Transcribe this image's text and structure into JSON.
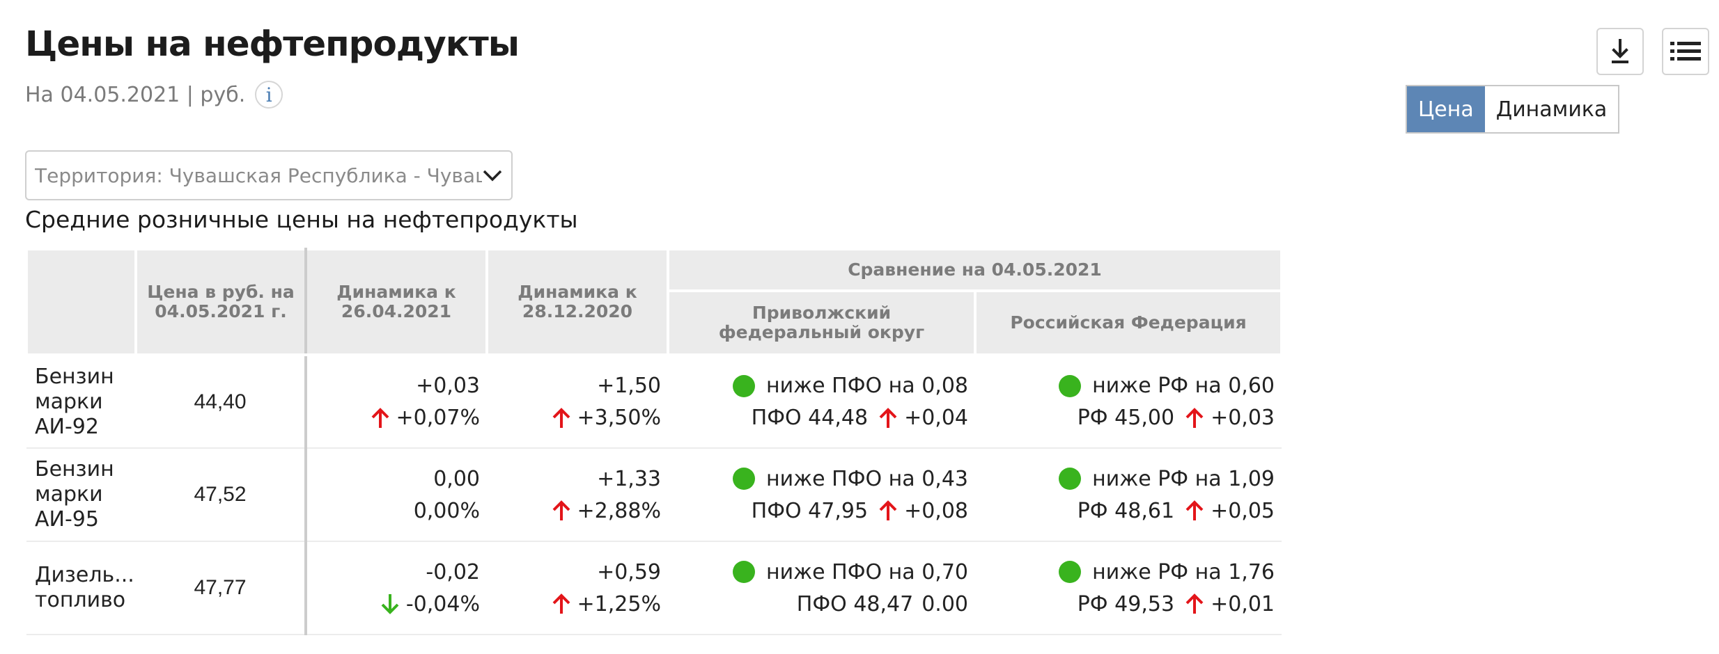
{
  "header": {
    "title": "Цены на нефтепродукты",
    "subtitle": "На 04.05.2021 | руб.",
    "info_icon_glyph": "i"
  },
  "toolbar": {
    "download_icon": "download-icon",
    "menu_icon": "list-menu-icon"
  },
  "view_toggle": {
    "options": [
      {
        "label": "Цена",
        "active": true
      },
      {
        "label": "Динамика",
        "active": false
      }
    ]
  },
  "territory": {
    "value": "Территория: Чувашская Республика - Чуваши"
  },
  "section_title": "Средние розничные цены на нефтепродукты",
  "table": {
    "headers": {
      "price": "Цена в руб. на 04.05.2021 г.",
      "dyn_week": "Динамика к 26.04.2021",
      "dyn_year": "Динамика к 28.12.2020",
      "compare_group": "Сравнение на 04.05.2021",
      "compare_district": "Приволжский федеральный округ",
      "compare_country": "Российская Федерация"
    },
    "rows": [
      {
        "name": "Бензин марки АИ-92",
        "price": "44,40",
        "dyn1_abs": "+0,03",
        "dyn1_pct": "+0,07%",
        "dyn1_dir": "up",
        "dyn2_abs": "+1,50",
        "dyn2_pct": "+3,50%",
        "dyn2_dir": "up",
        "pfo_cmp": "ниже ПФО на 0,08",
        "pfo_price": "ПФО 44,48",
        "pfo_delta": "+0,04",
        "pfo_dir": "up",
        "rf_cmp": "ниже РФ на 0,60",
        "rf_price": "РФ 45,00",
        "rf_delta": "+0,03",
        "rf_dir": "up"
      },
      {
        "name": "Бензин марки АИ-95",
        "price": "47,52",
        "dyn1_abs": "0,00",
        "dyn1_pct": "0,00%",
        "dyn1_dir": "none",
        "dyn2_abs": "+1,33",
        "dyn2_pct": "+2,88%",
        "dyn2_dir": "up",
        "pfo_cmp": "ниже ПФО на 0,43",
        "pfo_price": "ПФО 47,95",
        "pfo_delta": "+0,08",
        "pfo_dir": "up",
        "rf_cmp": "ниже РФ на 1,09",
        "rf_price": "РФ 48,61",
        "rf_delta": "+0,05",
        "rf_dir": "up"
      },
      {
        "name": "Дизель... топливо",
        "price": "47,77",
        "dyn1_abs": "-0,02",
        "dyn1_pct": "-0,04%",
        "dyn1_dir": "down",
        "dyn2_abs": "+0,59",
        "dyn2_pct": "+1,25%",
        "dyn2_dir": "up",
        "pfo_cmp": "ниже ПФО на 0,70",
        "pfo_price": "ПФО 48,47",
        "pfo_delta": "0.00",
        "pfo_dir": "none",
        "rf_cmp": "ниже РФ на 1,76",
        "rf_price": "РФ 49,53",
        "rf_delta": "+0,01",
        "rf_dir": "up"
      }
    ]
  },
  "colors": {
    "accent": "#5d86b5",
    "up_arrow": "#e3151a",
    "down_arrow": "#39b31e",
    "status_dot": "#39b31e",
    "header_bg": "#ebebeb"
  }
}
